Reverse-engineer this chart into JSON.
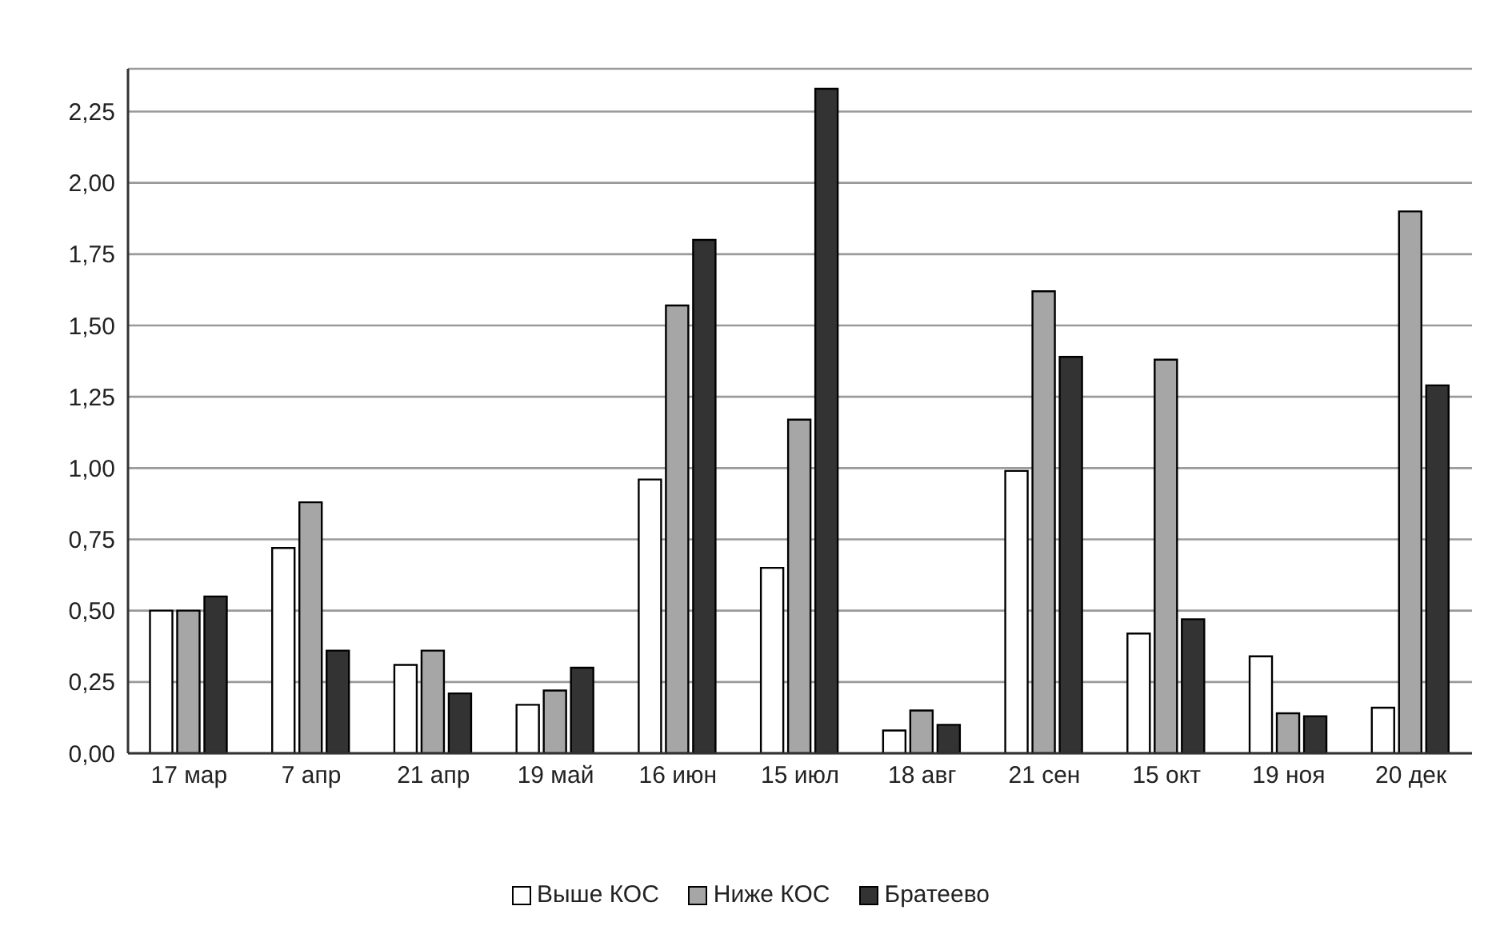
{
  "chart_data": {
    "type": "bar",
    "categories": [
      "17 мар",
      "7 апр",
      "21 апр",
      "19 май",
      "16 июн",
      "15 июл",
      "18 авг",
      "21 сен",
      "15 окт",
      "19 ноя",
      "20 дек"
    ],
    "series": [
      {
        "name": "Выше КОС",
        "color": "#ffffff",
        "values": [
          0.5,
          0.72,
          0.31,
          0.17,
          0.96,
          0.65,
          0.08,
          0.99,
          0.42,
          0.34,
          0.16
        ]
      },
      {
        "name": "Ниже КОС",
        "color": "#a6a6a6",
        "values": [
          0.5,
          0.88,
          0.36,
          0.22,
          1.57,
          1.17,
          0.15,
          1.62,
          1.38,
          0.14,
          1.9
        ]
      },
      {
        "name": "Братеево",
        "color": "#333333",
        "values": [
          0.55,
          0.36,
          0.21,
          0.3,
          1.8,
          2.33,
          0.1,
          1.39,
          0.47,
          0.13,
          1.29
        ]
      }
    ],
    "ylim": [
      0,
      2.4
    ],
    "yticks": [
      {
        "value": 0,
        "label": "0,00"
      },
      {
        "value": 0.25,
        "label": "0,25"
      },
      {
        "value": 0.5,
        "label": "0,50"
      },
      {
        "value": 0.75,
        "label": "0,75"
      },
      {
        "value": 1,
        "label": "1,00"
      },
      {
        "value": 1.25,
        "label": "1,25"
      },
      {
        "value": 1.5,
        "label": "1,50"
      },
      {
        "value": 1.75,
        "label": "1,75"
      },
      {
        "value": 2,
        "label": "2,00"
      },
      {
        "value": 2.25,
        "label": "2,25"
      }
    ],
    "grid": "y",
    "legend": "bottom"
  }
}
